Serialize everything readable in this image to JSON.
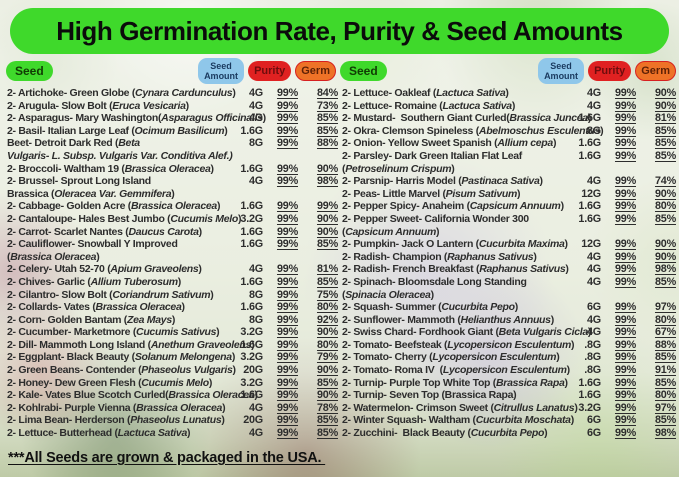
{
  "banner": {
    "title": "High Germination Rate, Purity & Seed Amounts"
  },
  "column_header": {
    "seed_label": "Seed",
    "amount_label": "Seed Amount",
    "purity_label": "Purity",
    "germ_label": "Germ"
  },
  "left_rows": [
    {
      "name": "2- Artichoke- Green Globe (*Cynara Cardunculus*)",
      "amount": "4G",
      "purity": "99%",
      "germ": "84%"
    },
    {
      "name": "2- Arugula- Slow Bolt (*Eruca Vesicaria*)",
      "amount": "4G",
      "purity": "99%",
      "germ": "73%"
    },
    {
      "name": "2- Asparagus- Mary Washington(*Asparagus Officinalis*)",
      "amount": "4G",
      "purity": "99%",
      "germ": "85%"
    },
    {
      "name": "2- Basil- Italian Large Leaf (*Ocimum Basilicum*)",
      "amount": "1.6G",
      "purity": "99%",
      "germ": "85%"
    },
    {
      "name": "Beet- Detroit Dark Red (*Beta\nVulgaris- L. Subsp. Vulgaris Var. Conditiva Alef.)*",
      "amount": "8G",
      "purity": "99%",
      "germ": "88%"
    },
    {
      "name": "2- Broccoli- Waltham 19 (*Brassica Oleracea*)",
      "amount": "1.6G",
      "purity": "99%",
      "germ": "90%"
    },
    {
      "name": "2- Brussel- Sprout Long Island\nBrassica (*Oleracea Var. Gemmifera*)",
      "amount": "4G",
      "purity": "99%",
      "germ": "98%"
    },
    {
      "name": "2- Cabbage- Golden Acre (*Brassica Oleracea*)",
      "amount": "1.6G",
      "purity": "99%",
      "germ": "99%"
    },
    {
      "name": "2- Cantaloupe- Hales Best Jumbo (*Cucumis Melo*)",
      "amount": "3.2G",
      "purity": "99%",
      "germ": "90%"
    },
    {
      "name": "2- Carrot- Scarlet Nantes (*Daucus Carota*)",
      "amount": "1.6G",
      "purity": "99%",
      "germ": "90%"
    },
    {
      "name": "2- Cauliflower- Snowball Y Improved\n(*Brassica Oleracea*)",
      "amount": "1.6G",
      "purity": "99%",
      "germ": "85%"
    },
    {
      "name": "2- Celery- Utah 52-70 (*Apium Graveolens*)",
      "amount": "4G",
      "purity": "99%",
      "germ": "81%"
    },
    {
      "name": "2- Chives- Garlic (*Allium Tuberosum*)",
      "amount": "1.6G",
      "purity": "99%",
      "germ": "85%"
    },
    {
      "name": "2- Cilantro- Slow Bolt (*Coriandrum Sativum*)",
      "amount": "8G",
      "purity": "99%",
      "germ": "75%"
    },
    {
      "name": "2- Collards- Vates (*Brassica Oleracea*)",
      "amount": "1.6G",
      "purity": "99%",
      "germ": "80%"
    },
    {
      "name": "2- Corn- Golden Bantam (*Zea Mays*)",
      "amount": "8G",
      "purity": "99%",
      "germ": "92%"
    },
    {
      "name": "2- Cucumber- Marketmore (*Cucumis Sativus*)",
      "amount": "3.2G",
      "purity": "99%",
      "germ": "90%"
    },
    {
      "name": "2- Dill- Mammoth Long Island (*Anethum Graveolens*)",
      "amount": "1.6G",
      "purity": "99%",
      "germ": "80%"
    },
    {
      "name": "2- Eggplant- Black Beauty (*Solanum Melongena*)",
      "amount": "3.2G",
      "purity": "99%",
      "germ": "79%"
    },
    {
      "name": "2- Green Beans- Contender (*Phaseolus Vulgaris*)",
      "amount": "20G",
      "purity": "99%",
      "germ": "90%"
    },
    {
      "name": "2- Honey- Dew Green Flesh (*Cucumis Melo*)",
      "amount": "3.2G",
      "purity": "99%",
      "germ": "85%"
    },
    {
      "name": "2- Kale- Vates Blue Scotch Curled(*Brassica Oleracea*)",
      "amount": "1.6G",
      "purity": "99%",
      "germ": "90%"
    },
    {
      "name": "2- Kohlrabi- Purple Vienna (*Brassica Oleracea*)",
      "amount": "4G",
      "purity": "99%",
      "germ": "78%"
    },
    {
      "name": "2- Lima Bean- Herderson (*Phaseolus Lunatus*)",
      "amount": "20G",
      "purity": "99%",
      "germ": "85%"
    },
    {
      "name": "2- Lettuce- Butterhead (*Lactuca Sativa*)",
      "amount": "4G",
      "purity": "99%",
      "germ": "85%"
    }
  ],
  "right_rows": [
    {
      "name": "2- Lettuce- Oakleaf (*Lactuca Sativa*)",
      "amount": "4G",
      "purity": "99%",
      "germ": "90%"
    },
    {
      "name": "2- Lettuce- Romaine (*Lactuca Sativa*)",
      "amount": "4G",
      "purity": "99%",
      "germ": "90%"
    },
    {
      "name": "2- Mustard-  Southern Giant Curled(*Brassica Juncea*)",
      "amount": "1.6G",
      "purity": "99%",
      "germ": "81%"
    },
    {
      "name": "2- Okra- Clemson Spineless (*Abelmoschus Esculentus*)",
      "amount": "8G",
      "purity": "99%",
      "germ": "85%"
    },
    {
      "name": "2- Onion- Yellow Sweet Spanish (*Allium cepa*)",
      "amount": "1.6G",
      "purity": "99%",
      "germ": "85%"
    },
    {
      "name": "2- Parsley- Dark Green Italian Flat Leaf\n(*Petroselinum Crispum*)",
      "amount": "1.6G",
      "purity": "99%",
      "germ": "85%"
    },
    {
      "name": "2- Parsnip- Harris Model (*Pastinaca Sativa*)",
      "amount": "4G",
      "purity": "99%",
      "germ": "74%"
    },
    {
      "name": "2- Peas- Little Marvel (*Pisum Sativum*)",
      "amount": "12G",
      "purity": "99%",
      "germ": "90%"
    },
    {
      "name": "2- Pepper Spicy- Anaheim (*Capsicum Annuum*)",
      "amount": "1.6G",
      "purity": "99%",
      "germ": "80%"
    },
    {
      "name": "2- Pepper Sweet- California Wonder 300\n(*Capsicum Annuum*)",
      "amount": "1.6G",
      "purity": "99%",
      "germ": "85%"
    },
    {
      "name": "2- Pumpkin- Jack O Lantern (*Cucurbita Maxima*)",
      "amount": "12G",
      "purity": "99%",
      "germ": "90%"
    },
    {
      "name": "2- Radish- Champion (*Raphanus Sativus*)",
      "amount": "4G",
      "purity": "99%",
      "germ": "90%"
    },
    {
      "name": "2- Radish- French Breakfast (*Raphanus Sativus*)",
      "amount": "4G",
      "purity": "99%",
      "germ": "98%"
    },
    {
      "name": "2- Spinach- Bloomsdale Long Standing\n(*Spinacia Oleracea*)",
      "amount": "4G",
      "purity": "99%",
      "germ": "85%"
    },
    {
      "name": "2- Squash- Summer (*Cucurbita Pepo*)",
      "amount": "6G",
      "purity": "99%",
      "germ": "97%"
    },
    {
      "name": "2- Sunflower- Mammoth (*Helianthus Annuus*)",
      "amount": "4G",
      "purity": "99%",
      "germ": "80%"
    },
    {
      "name": "2- Swiss Chard- Fordhook Giant (*Beta Vulgaris Cicla*)",
      "amount": "4G",
      "purity": "99%",
      "germ": "67%"
    },
    {
      "name": "2- Tomato- Beefsteak (*Lycopersicon Esculentum*)",
      "amount": ".8G",
      "purity": "99%",
      "germ": "88%"
    },
    {
      "name": "2- Tomato- Cherry (*Lycopersicon Esculentum*)",
      "amount": ".8G",
      "purity": "99%",
      "germ": "85%"
    },
    {
      "name": "2- Tomato- Roma IV  (*Lycopersicon Esculentum*)",
      "amount": ".8G",
      "purity": "99%",
      "germ": "91%"
    },
    {
      "name": "2- Turnip- Purple Top White Top (*Brassica Rapa*)",
      "amount": "1.6G",
      "purity": "99%",
      "germ": "85%"
    },
    {
      "name": "2- Turnip- Seven Top (Brassica Rapa)",
      "amount": "1.6G",
      "purity": "99%",
      "germ": "80%"
    },
    {
      "name": "2- Watermelon- Crimson Sweet (*Citrullus Lanatus*)",
      "amount": "3.2G",
      "purity": "99%",
      "germ": "97%"
    },
    {
      "name": "2- Winter Squash- Waltham (*Cucurbita Moschata*)",
      "amount": "6G",
      "purity": "99%",
      "germ": "85%"
    },
    {
      "name": "2- Zucchini-  Black Beauty (*Cucurbita Pepo*)",
      "amount": "6G",
      "purity": "99%",
      "germ": "98%"
    }
  ],
  "footer": {
    "note": "***All Seeds are grown & packaged in the USA. "
  },
  "colors": {
    "banner_green": "#3fd92b",
    "amount_blue": "#8fc7ea",
    "amount_text": "#1a3a5f",
    "purity_red": "#e02121",
    "purity_text": "#6e0d0d",
    "germ_orange": "#ee7227",
    "germ_text": "#5e2106",
    "germ_border": "#d62020",
    "row_text": "#2d2d2d"
  }
}
